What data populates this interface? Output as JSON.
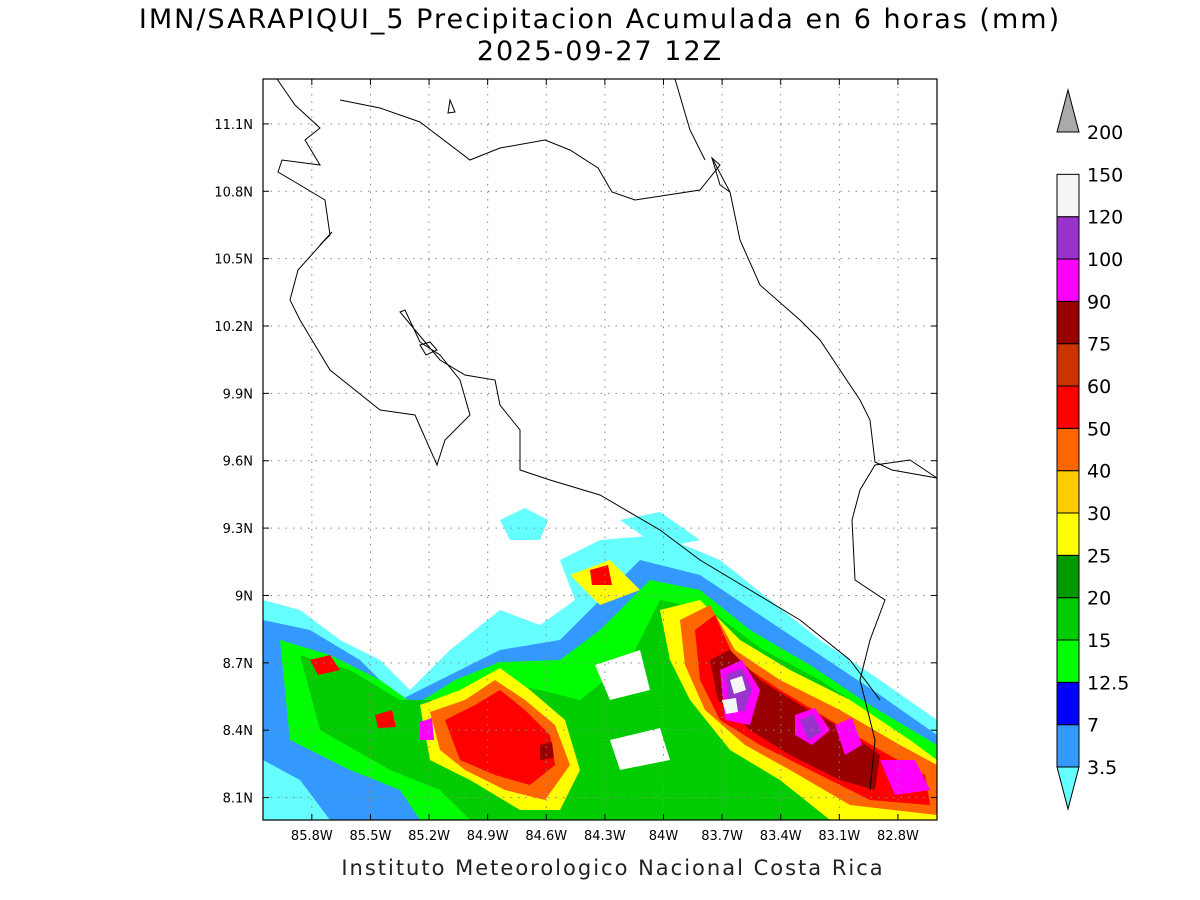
{
  "title": {
    "line1": "IMN/SARAPIQUI_5 Precipitacion Acumulada en 6 horas (mm)",
    "line2": "2025-09-27 12Z"
  },
  "footer": "Instituto Meteorologico Nacional Costa Rica",
  "map": {
    "lon_range": [
      -86.05,
      -82.6
    ],
    "lat_range": [
      8.0,
      11.3
    ],
    "lon_ticks": [
      {
        "value": -85.8,
        "label": "85.8W"
      },
      {
        "value": -85.5,
        "label": "85.5W"
      },
      {
        "value": -85.2,
        "label": "85.2W"
      },
      {
        "value": -84.9,
        "label": "84.9W"
      },
      {
        "value": -84.6,
        "label": "84.6W"
      },
      {
        "value": -84.3,
        "label": "84.3W"
      },
      {
        "value": -84.0,
        "label": "84W"
      },
      {
        "value": -83.7,
        "label": "83.7W"
      },
      {
        "value": -83.4,
        "label": "83.4W"
      },
      {
        "value": -83.1,
        "label": "83.1W"
      },
      {
        "value": -82.8,
        "label": "82.8W"
      }
    ],
    "lat_ticks": [
      {
        "value": 8.1,
        "label": "8.1N"
      },
      {
        "value": 8.4,
        "label": "8.4N"
      },
      {
        "value": 8.7,
        "label": "8.7N"
      },
      {
        "value": 9.0,
        "label": "9N"
      },
      {
        "value": 9.3,
        "label": "9.3N"
      },
      {
        "value": 9.6,
        "label": "9.6N"
      },
      {
        "value": 9.9,
        "label": "9.9N"
      },
      {
        "value": 10.2,
        "label": "10.2N"
      },
      {
        "value": 10.5,
        "label": "10.5N"
      },
      {
        "value": 10.8,
        "label": "10.8N"
      },
      {
        "value": 11.1,
        "label": "11.1N"
      }
    ],
    "grid": true
  },
  "colorbar": {
    "levels": [
      {
        "label": "3.5",
        "color": "#66ffff"
      },
      {
        "label": "7",
        "color": "#3399ff"
      },
      {
        "label": "12.5",
        "color": "#0000ff"
      },
      {
        "label": "15",
        "color": "#00ff00"
      },
      {
        "label": "20",
        "color": "#00cc00"
      },
      {
        "label": "25",
        "color": "#009900"
      },
      {
        "label": "30",
        "color": "#ffff00"
      },
      {
        "label": "40",
        "color": "#ffcc00"
      },
      {
        "label": "50",
        "color": "#ff6600"
      },
      {
        "label": "60",
        "color": "#ff0000"
      },
      {
        "label": "75",
        "color": "#cc3300"
      },
      {
        "label": "90",
        "color": "#990000"
      },
      {
        "label": "100",
        "color": "#ff00ff"
      },
      {
        "label": "120",
        "color": "#9933cc"
      },
      {
        "label": "150",
        "color": "#f5f5f5"
      },
      {
        "label": "200",
        "color": "#aaaaaa"
      }
    ]
  }
}
